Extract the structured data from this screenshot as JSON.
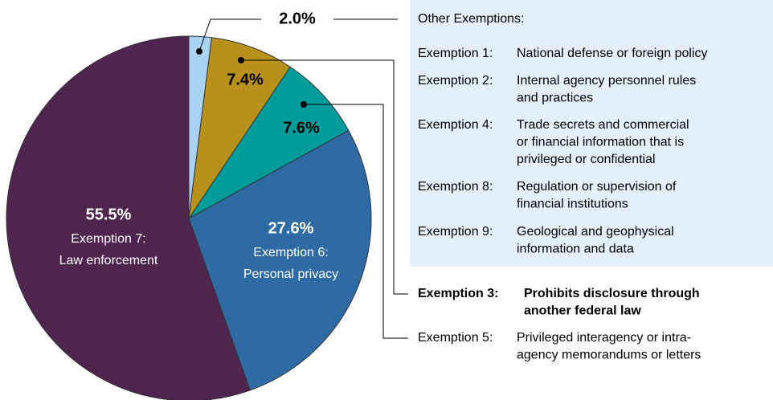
{
  "chart_data": {
    "type": "pie",
    "values": [
      2.0,
      7.4,
      7.6,
      27.6,
      55.5
    ],
    "value_labels": [
      "2.0%",
      "7.4%",
      "7.6%",
      "27.6%",
      "55.5%"
    ],
    "colors": [
      "#a9d3f5",
      "#b8901c",
      "#009b9b",
      "#2e6aa3",
      "#4f2550"
    ],
    "slice_labels": [
      [],
      [],
      [],
      [
        "Exemption 6:",
        "Personal privacy"
      ],
      [
        "Exemption 7:",
        "Law enforcement"
      ]
    ],
    "other_exemptions": {
      "title": "Other Exemptions:",
      "items": [
        {
          "code": "Exemption 1:",
          "lines": [
            "National defense or foreign policy"
          ]
        },
        {
          "code": "Exemption 2:",
          "lines": [
            "Internal agency personnel rules",
            "and practices"
          ]
        },
        {
          "code": "Exemption 4:",
          "lines": [
            "Trade secrets and commercial",
            "or financial information that is",
            "privileged or confidential"
          ]
        },
        {
          "code": "Exemption 8:",
          "lines": [
            "Regulation or supervision of",
            "financial institutions"
          ]
        },
        {
          "code": "Exemption 9:",
          "lines": [
            "Geological and geophysical",
            "information and data"
          ]
        }
      ]
    },
    "callouts": [
      {
        "code": "Exemption 3:",
        "lines": [
          "Prohibits disclosure through",
          "another federal law"
        ],
        "bold": true
      },
      {
        "code": "Exemption 5:",
        "lines": [
          "Privileged interagency or intra-",
          "agency memorandums or letters"
        ],
        "bold": false
      }
    ]
  }
}
